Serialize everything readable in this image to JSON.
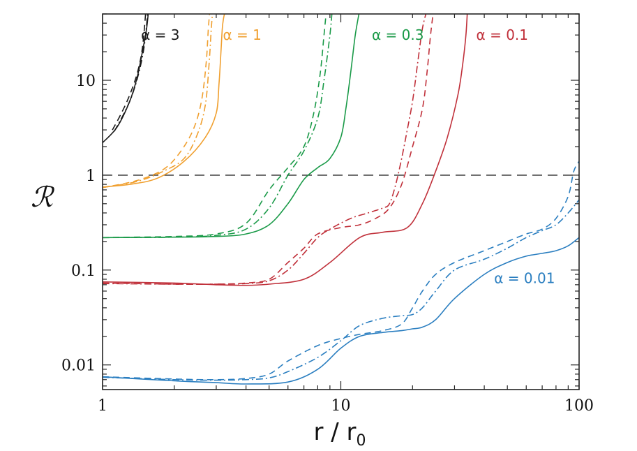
{
  "chart_data": {
    "type": "line",
    "xlabel": "r / r",
    "xlabel_sub": "0",
    "ylabel": "ℛ",
    "xscale": "log",
    "yscale": "log",
    "xlim": [
      1,
      100
    ],
    "ylim": [
      0.0055,
      50
    ],
    "x_ticks": [
      1,
      10,
      100
    ],
    "x_tick_labels": [
      "1",
      "10",
      "100"
    ],
    "y_ticks": [
      0.01,
      0.1,
      1,
      10
    ],
    "y_tick_labels": [
      "0.01",
      "0.1",
      "1",
      "10"
    ],
    "reference_line": {
      "y": 1,
      "style": "dashed",
      "color": "#222222"
    },
    "series": [
      {
        "name": "α = 3",
        "color": "#1a1a1a",
        "label_at": [
          1.45,
          30
        ],
        "curves": [
          {
            "style": "solid",
            "x": [
              1,
              1.15,
              1.3,
              1.4,
              1.47,
              1.53,
              1.56
            ],
            "y": [
              2.2,
              3.2,
              6.0,
              11,
              20,
              35,
              55
            ]
          },
          {
            "style": "dashed",
            "x": [
              1.1,
              1.2,
              1.3,
              1.4,
              1.47,
              1.52
            ],
            "y": [
              3.0,
              4.5,
              7.0,
              12,
              22,
              55
            ]
          },
          {
            "style": "dashdot",
            "x": [
              1.12,
              1.22,
              1.32,
              1.42,
              1.5,
              1.55
            ],
            "y": [
              2.9,
              4.3,
              6.6,
              12,
              24,
              55
            ]
          }
        ]
      },
      {
        "name": "α = 1",
        "color": "#f0a030",
        "label_at": [
          3.2,
          30
        ],
        "curves": [
          {
            "style": "solid",
            "x": [
              1,
              1.3,
              1.7,
              2.2,
              2.7,
              3.0,
              3.08,
              3.14,
              3.18,
              3.22,
              3.28
            ],
            "y": [
              0.75,
              0.8,
              0.93,
              1.4,
              2.5,
              4.5,
              9,
              20,
              35,
              45,
              55
            ]
          },
          {
            "style": "dashed",
            "x": [
              1,
              1.4,
              1.8,
              2.1,
              2.4,
              2.6,
              2.72,
              2.78,
              2.82
            ],
            "y": [
              0.74,
              0.88,
              1.15,
              1.7,
              3.0,
              6.0,
              15,
              35,
              55
            ]
          },
          {
            "style": "dashdot",
            "x": [
              1,
              1.4,
              1.8,
              2.2,
              2.5,
              2.7,
              2.8,
              2.86,
              2.9
            ],
            "y": [
              0.74,
              0.86,
              1.1,
              1.5,
              2.7,
              5.5,
              15,
              35,
              55
            ]
          }
        ]
      },
      {
        "name": "α = 0.3",
        "color": "#1a9a48",
        "label_at": [
          13.5,
          30
        ],
        "curves": [
          {
            "style": "solid",
            "x": [
              1,
              2,
              3,
              4,
              5,
              6,
              7,
              8,
              9,
              10,
              10.5,
              11,
              11.5,
              12
            ],
            "y": [
              0.22,
              0.222,
              0.226,
              0.24,
              0.3,
              0.5,
              0.9,
              1.2,
              1.5,
              2.5,
              5,
              12,
              30,
              55
            ]
          },
          {
            "style": "dashed",
            "x": [
              1,
              2,
              3,
              4,
              5,
              6,
              7,
              7.7,
              8.2,
              8.5,
              8.7
            ],
            "y": [
              0.22,
              0.226,
              0.24,
              0.31,
              0.7,
              1.2,
              2.0,
              4.5,
              12,
              30,
              55
            ]
          },
          {
            "style": "dashdot",
            "x": [
              1,
              2,
              3,
              4,
              5,
              6,
              7,
              8,
              8.5,
              9,
              9.2
            ],
            "y": [
              0.22,
              0.222,
              0.232,
              0.27,
              0.45,
              1.0,
              1.8,
              4,
              10,
              30,
              55
            ]
          }
        ]
      },
      {
        "name": "α = 0.1",
        "color": "#c0303a",
        "label_at": [
          37,
          30
        ],
        "curves": [
          {
            "style": "solid",
            "x": [
              1,
              2,
              3,
              4,
              5,
              7,
              9,
              12,
              15,
              19,
              22,
              25,
              28,
              31,
              32.5,
              33.5,
              34
            ],
            "y": [
              0.075,
              0.073,
              0.07,
              0.069,
              0.071,
              0.08,
              0.12,
              0.22,
              0.25,
              0.28,
              0.5,
              1.1,
              2.5,
              7,
              15,
              30,
              55
            ]
          },
          {
            "style": "dashed",
            "x": [
              1,
              2,
              3,
              4,
              5,
              6,
              7,
              8,
              10,
              12,
              14,
              16,
              18,
              20,
              22,
              23,
              23.8,
              24.5
            ],
            "y": [
              0.073,
              0.071,
              0.071,
              0.073,
              0.08,
              0.12,
              0.17,
              0.24,
              0.28,
              0.3,
              0.35,
              0.45,
              0.8,
              2.0,
              5,
              12,
              30,
              55
            ]
          },
          {
            "style": "dashdot",
            "x": [
              1,
              2,
              3,
              4,
              5,
              6,
              7,
              8,
              9,
              11,
              13,
              15,
              16,
              17,
              18,
              19,
              20,
              21,
              22,
              23
            ],
            "y": [
              0.072,
              0.071,
              0.071,
              0.072,
              0.077,
              0.1,
              0.15,
              0.22,
              0.27,
              0.35,
              0.4,
              0.45,
              0.5,
              0.8,
              1.5,
              3,
              6,
              15,
              35,
              55
            ]
          }
        ]
      },
      {
        "name": "α = 0.01",
        "color": "#2a7ec0",
        "label_at": [
          44,
          0.082
        ],
        "curves": [
          {
            "style": "solid",
            "x": [
              1,
              2,
              3,
              4,
              6,
              8,
              10,
              12,
              15,
              18,
              20,
              22,
              25,
              30,
              40,
              50,
              60,
              70,
              80,
              90,
              100
            ],
            "y": [
              0.0075,
              0.0068,
              0.0065,
              0.0063,
              0.0066,
              0.009,
              0.015,
              0.02,
              0.022,
              0.023,
              0.024,
              0.025,
              0.03,
              0.05,
              0.09,
              0.12,
              0.14,
              0.15,
              0.16,
              0.18,
              0.22
            ]
          },
          {
            "style": "dashed",
            "x": [
              1,
              2,
              3,
              4,
              5,
              6,
              8,
              10,
              12,
              15,
              18,
              20,
              22,
              25,
              30,
              40,
              50,
              60,
              70,
              80,
              90,
              95,
              100
            ],
            "y": [
              0.0075,
              0.0071,
              0.007,
              0.0072,
              0.008,
              0.011,
              0.016,
              0.019,
              0.021,
              0.023,
              0.027,
              0.04,
              0.06,
              0.09,
              0.12,
              0.16,
              0.2,
              0.24,
              0.27,
              0.35,
              0.6,
              1.1,
              1.4
            ]
          },
          {
            "style": "dashdot",
            "x": [
              1,
              2,
              3,
              4,
              5,
              6,
              8,
              10,
              12,
              15,
              18,
              20,
              22,
              25,
              30,
              40,
              50,
              60,
              70,
              80,
              90,
              100
            ],
            "y": [
              0.0074,
              0.007,
              0.0069,
              0.007,
              0.0073,
              0.0085,
              0.012,
              0.018,
              0.026,
              0.031,
              0.033,
              0.034,
              0.04,
              0.06,
              0.1,
              0.13,
              0.17,
              0.22,
              0.26,
              0.3,
              0.4,
              0.55
            ]
          }
        ]
      }
    ]
  }
}
